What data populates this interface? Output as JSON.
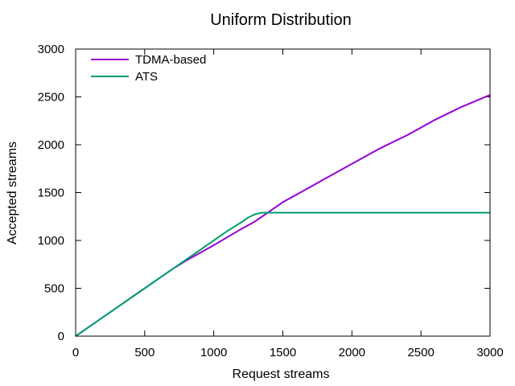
{
  "chart_data": {
    "type": "line",
    "title": "Uniform Distribution",
    "xlabel": "Request streams",
    "ylabel": "Accepted streams",
    "xlim": [
      0,
      3000
    ],
    "ylim": [
      0,
      3000
    ],
    "xticks": [
      0,
      500,
      1000,
      1500,
      2000,
      2500,
      3000
    ],
    "yticks": [
      0,
      500,
      1000,
      1500,
      2000,
      2500,
      3000
    ],
    "grid": false,
    "legend_position": "top-left",
    "series": [
      {
        "name": "TDMA-based",
        "color": "#9400d3",
        "x": [
          0,
          250,
          500,
          700,
          800,
          900,
          1000,
          1100,
          1200,
          1300,
          1400,
          1500,
          1600,
          1700,
          1800,
          1900,
          2000,
          2100,
          2200,
          2300,
          2400,
          2500,
          2600,
          2700,
          2800,
          2900,
          3000
        ],
        "y": [
          0,
          250,
          500,
          700,
          790,
          870,
          950,
          1035,
          1120,
          1200,
          1300,
          1400,
          1480,
          1560,
          1640,
          1720,
          1800,
          1880,
          1960,
          2030,
          2100,
          2180,
          2260,
          2330,
          2400,
          2460,
          2520
        ]
      },
      {
        "name": "ATS",
        "color": "#009e73",
        "x": [
          0,
          250,
          500,
          700,
          800,
          900,
          1000,
          1100,
          1200,
          1250,
          1300,
          1350,
          1400,
          1500,
          2000,
          2500,
          3000
        ],
        "y": [
          0,
          250,
          500,
          700,
          800,
          900,
          1000,
          1100,
          1190,
          1240,
          1275,
          1290,
          1290,
          1290,
          1290,
          1290,
          1290
        ]
      }
    ]
  }
}
